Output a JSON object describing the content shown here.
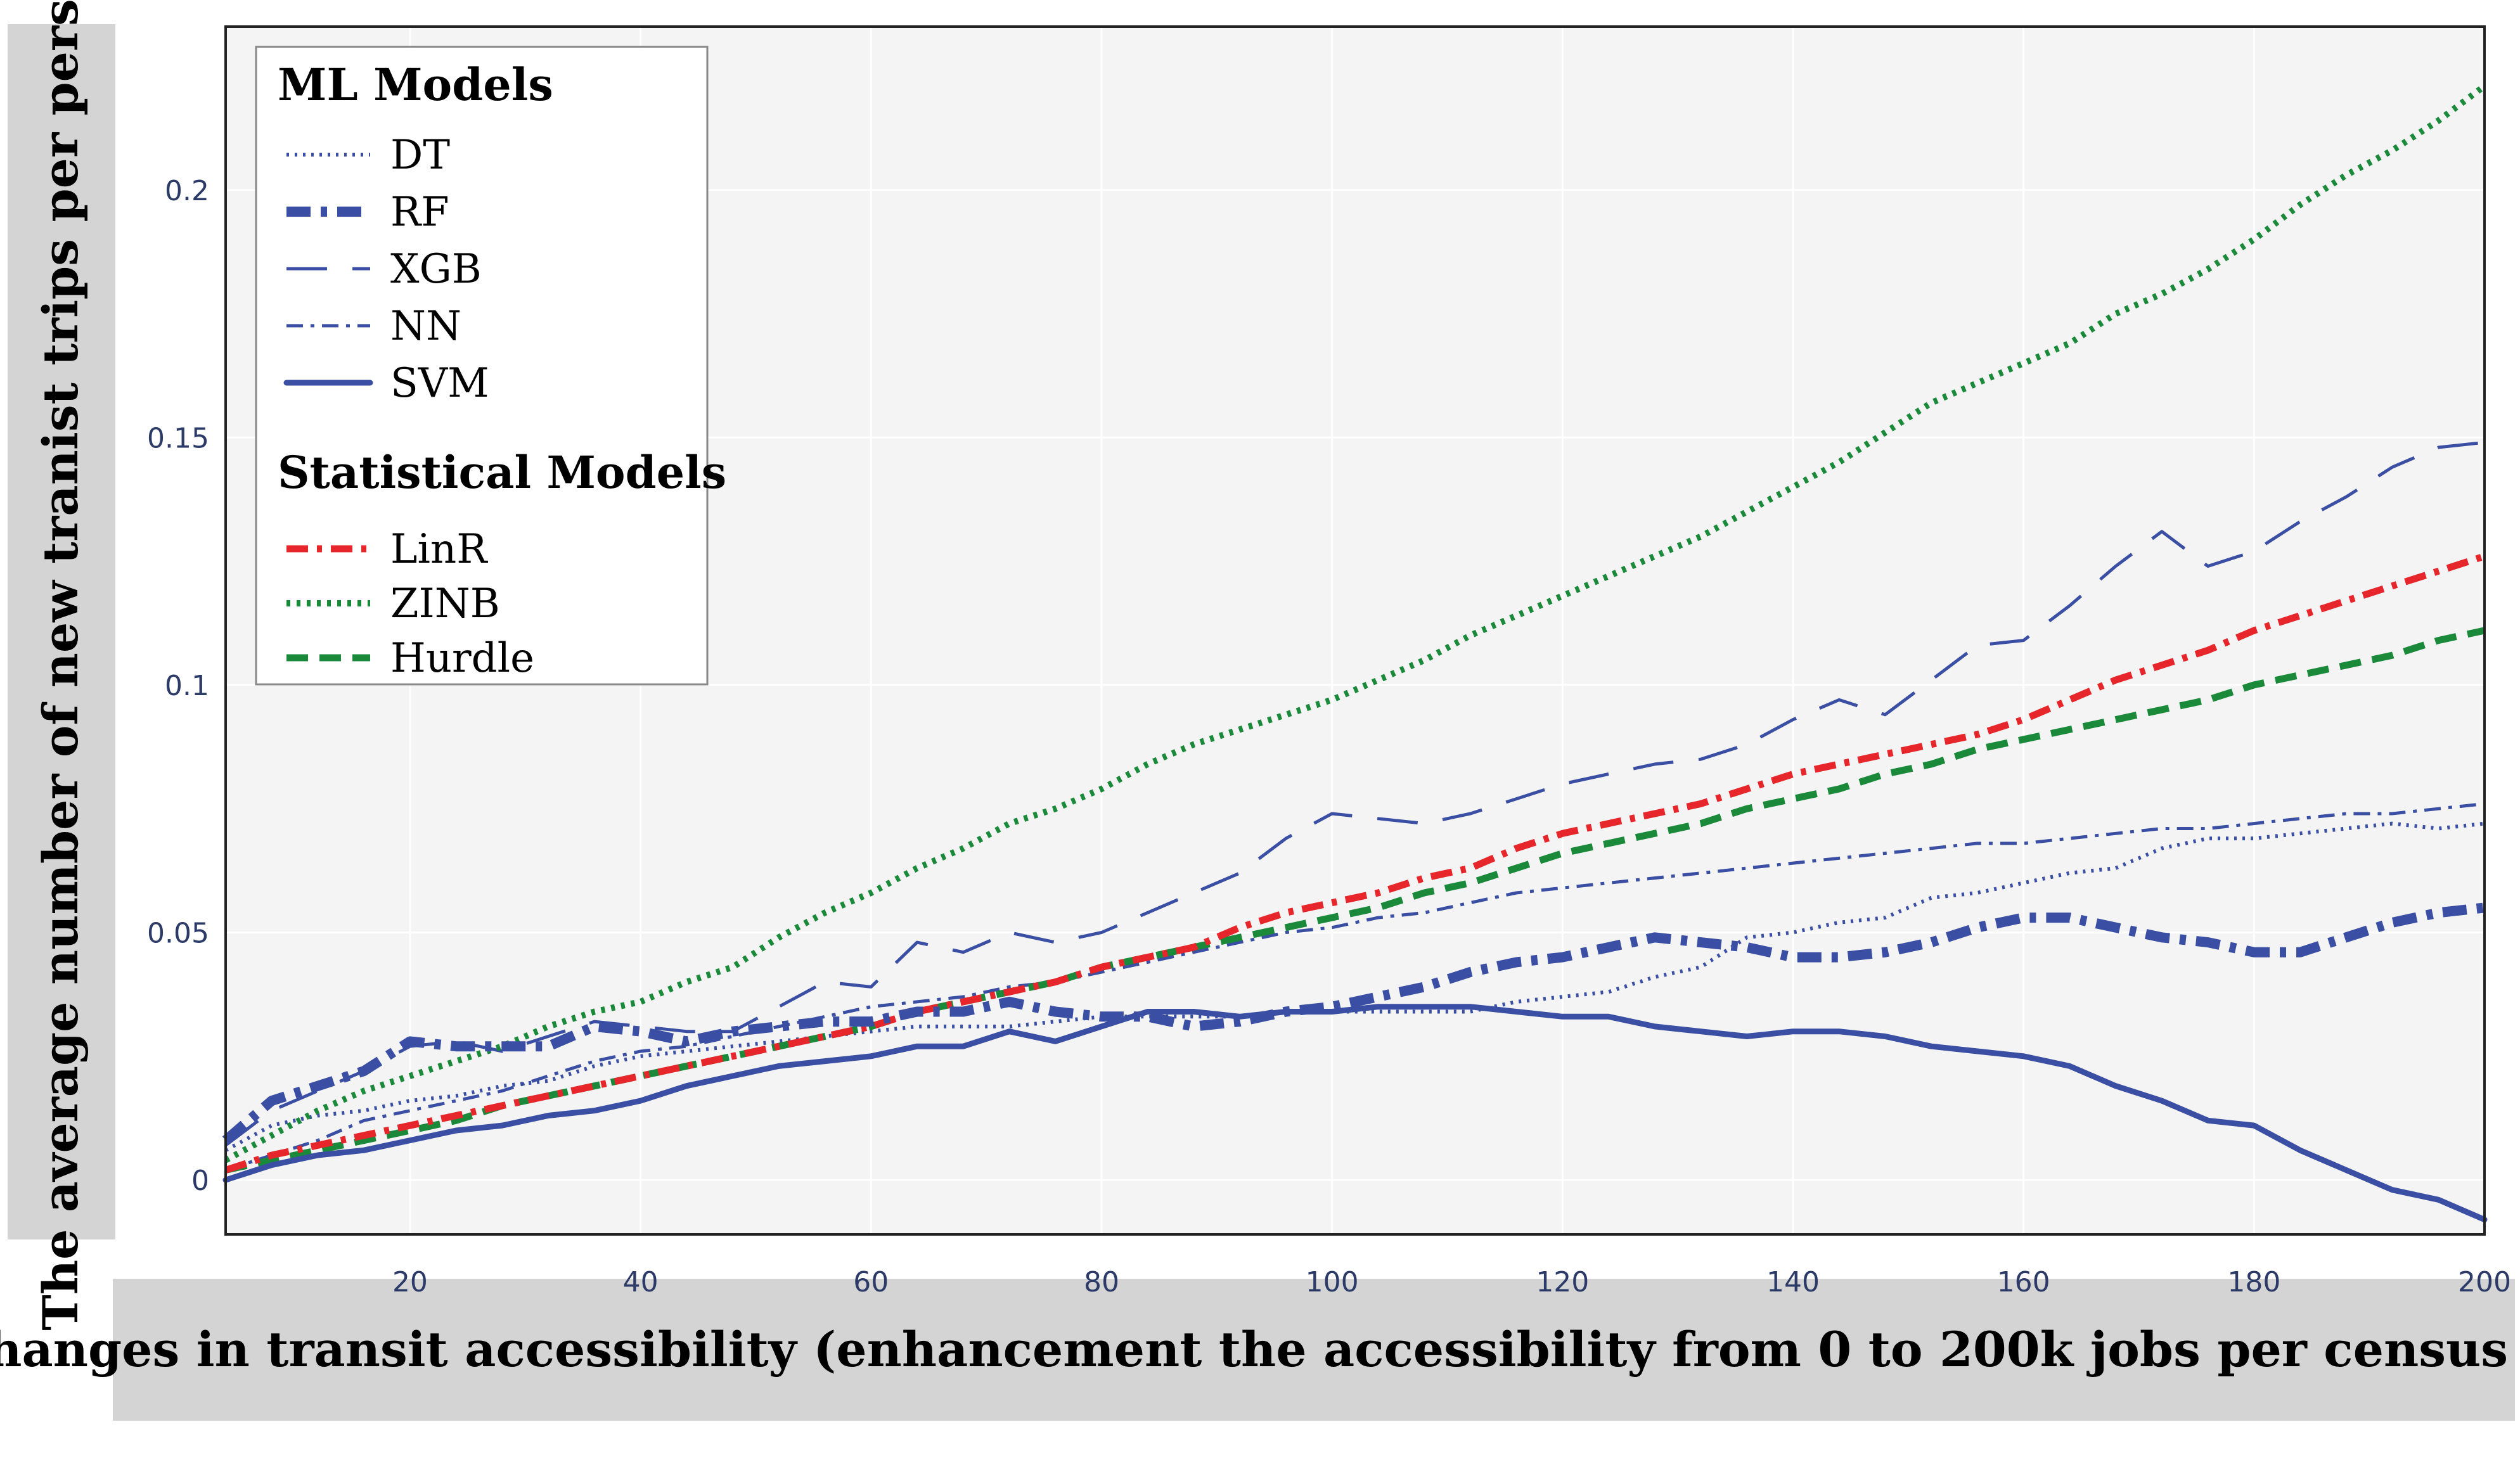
{
  "chart_data": {
    "type": "line",
    "title": "",
    "xlabel": "Changes in transit accessibility (enhancement the accessibility from 0 to 200k jobs per census tract)",
    "ylabel": "The average number of new tranist trips per person",
    "xlim": [
      4,
      200
    ],
    "ylim": [
      -0.011,
      0.233
    ],
    "xticks": [
      20,
      40,
      60,
      80,
      100,
      120,
      140,
      160,
      180,
      200
    ],
    "xtick_labels": [
      "20",
      "40",
      "60",
      "80",
      "100",
      "120",
      "140",
      "160",
      "180",
      "200"
    ],
    "yticks": [
      0,
      0.05,
      0.1,
      0.15,
      0.2
    ],
    "ytick_labels": [
      "0",
      "0.05",
      "0.1",
      "0.15",
      "0.2"
    ],
    "grid": true,
    "legend": {
      "position": "top-left",
      "groups": [
        {
          "title": "ML Models",
          "items": [
            "DT",
            "RF",
            "XGB",
            "NN",
            "SVM"
          ]
        },
        {
          "title": "Statistical Models",
          "items": [
            "LinR",
            "ZINB",
            "Hurdle"
          ]
        }
      ]
    },
    "series": [
      {
        "name": "DT",
        "group": "ML Models",
        "color": "#3a4fa3",
        "style": "dotted",
        "x": [
          4,
          8,
          12,
          16,
          20,
          24,
          28,
          32,
          36,
          40,
          44,
          48,
          52,
          56,
          60,
          64,
          68,
          72,
          76,
          80,
          84,
          88,
          92,
          96,
          100,
          104,
          108,
          112,
          116,
          120,
          124,
          128,
          132,
          136,
          140,
          144,
          148,
          152,
          156,
          160,
          164,
          168,
          172,
          176,
          180,
          184,
          188,
          192,
          196,
          200
        ],
        "y": [
          0.006,
          0.011,
          0.013,
          0.014,
          0.016,
          0.017,
          0.019,
          0.02,
          0.023,
          0.025,
          0.026,
          0.027,
          0.028,
          0.029,
          0.03,
          0.031,
          0.031,
          0.031,
          0.032,
          0.033,
          0.033,
          0.033,
          0.033,
          0.034,
          0.034,
          0.034,
          0.034,
          0.034,
          0.036,
          0.037,
          0.038,
          0.041,
          0.043,
          0.049,
          0.05,
          0.052,
          0.053,
          0.057,
          0.058,
          0.06,
          0.062,
          0.063,
          0.067,
          0.069,
          0.069,
          0.07,
          0.071,
          0.072,
          0.071,
          0.072
        ]
      },
      {
        "name": "RF",
        "group": "ML Models",
        "color": "#3a4fa3",
        "style": "thick-dashdot",
        "x": [
          4,
          8,
          12,
          16,
          20,
          24,
          28,
          32,
          36,
          40,
          44,
          48,
          52,
          56,
          60,
          64,
          68,
          72,
          76,
          80,
          84,
          88,
          92,
          96,
          100,
          104,
          108,
          112,
          116,
          120,
          124,
          128,
          132,
          136,
          140,
          144,
          148,
          152,
          156,
          160,
          164,
          168,
          172,
          176,
          180,
          184,
          188,
          192,
          196,
          200
        ],
        "y": [
          0.008,
          0.016,
          0.019,
          0.022,
          0.028,
          0.027,
          0.027,
          0.027,
          0.031,
          0.03,
          0.028,
          0.03,
          0.031,
          0.032,
          0.032,
          0.034,
          0.034,
          0.036,
          0.034,
          0.033,
          0.033,
          0.031,
          0.032,
          0.034,
          0.035,
          0.037,
          0.039,
          0.042,
          0.044,
          0.045,
          0.047,
          0.049,
          0.048,
          0.047,
          0.045,
          0.045,
          0.046,
          0.048,
          0.051,
          0.053,
          0.053,
          0.051,
          0.049,
          0.048,
          0.046,
          0.046,
          0.049,
          0.052,
          0.054,
          0.055
        ]
      },
      {
        "name": "XGB",
        "group": "ML Models",
        "color": "#3a4fa3",
        "style": "long-dash",
        "x": [
          4,
          8,
          12,
          16,
          20,
          24,
          28,
          32,
          36,
          40,
          44,
          48,
          52,
          56,
          60,
          64,
          68,
          72,
          76,
          80,
          84,
          88,
          92,
          96,
          100,
          104,
          108,
          112,
          116,
          120,
          124,
          128,
          132,
          136,
          140,
          144,
          148,
          152,
          156,
          160,
          164,
          168,
          172,
          176,
          180,
          184,
          188,
          192,
          196,
          200
        ],
        "y": [
          0.007,
          0.014,
          0.018,
          0.022,
          0.027,
          0.028,
          0.026,
          0.029,
          0.032,
          0.031,
          0.03,
          0.03,
          0.035,
          0.04,
          0.039,
          0.048,
          0.046,
          0.05,
          0.048,
          0.05,
          0.054,
          0.058,
          0.062,
          0.069,
          0.074,
          0.073,
          0.072,
          0.074,
          0.077,
          0.08,
          0.082,
          0.084,
          0.085,
          0.088,
          0.093,
          0.097,
          0.094,
          0.101,
          0.108,
          0.109,
          0.116,
          0.124,
          0.131,
          0.124,
          0.127,
          0.133,
          0.138,
          0.144,
          0.148,
          0.149
        ]
      },
      {
        "name": "NN",
        "group": "ML Models",
        "color": "#3a4fa3",
        "style": "dashdot",
        "x": [
          4,
          8,
          12,
          16,
          20,
          24,
          28,
          32,
          36,
          40,
          44,
          48,
          52,
          56,
          60,
          64,
          68,
          72,
          76,
          80,
          84,
          88,
          92,
          96,
          100,
          104,
          108,
          112,
          116,
          120,
          124,
          128,
          132,
          136,
          140,
          144,
          148,
          152,
          156,
          160,
          164,
          168,
          172,
          176,
          180,
          184,
          188,
          192,
          196,
          200
        ],
        "y": [
          0.002,
          0.005,
          0.008,
          0.012,
          0.014,
          0.016,
          0.018,
          0.021,
          0.024,
          0.026,
          0.027,
          0.029,
          0.031,
          0.033,
          0.035,
          0.036,
          0.037,
          0.039,
          0.04,
          0.042,
          0.044,
          0.046,
          0.048,
          0.05,
          0.051,
          0.053,
          0.054,
          0.056,
          0.058,
          0.059,
          0.06,
          0.061,
          0.062,
          0.063,
          0.064,
          0.065,
          0.066,
          0.067,
          0.068,
          0.068,
          0.069,
          0.07,
          0.071,
          0.071,
          0.072,
          0.073,
          0.074,
          0.074,
          0.075,
          0.076
        ]
      },
      {
        "name": "SVM",
        "group": "ML Models",
        "color": "#3a4fa3",
        "style": "solid",
        "x": [
          4,
          8,
          12,
          16,
          20,
          24,
          28,
          32,
          36,
          40,
          44,
          48,
          52,
          56,
          60,
          64,
          68,
          72,
          76,
          80,
          84,
          88,
          92,
          96,
          100,
          104,
          108,
          112,
          116,
          120,
          124,
          128,
          132,
          136,
          140,
          144,
          148,
          152,
          156,
          160,
          164,
          168,
          172,
          176,
          180,
          184,
          188,
          192,
          196,
          200
        ],
        "y": [
          0.0,
          0.003,
          0.005,
          0.006,
          0.008,
          0.01,
          0.011,
          0.013,
          0.014,
          0.016,
          0.019,
          0.021,
          0.023,
          0.024,
          0.025,
          0.027,
          0.027,
          0.03,
          0.028,
          0.031,
          0.034,
          0.034,
          0.033,
          0.034,
          0.034,
          0.035,
          0.035,
          0.035,
          0.034,
          0.033,
          0.033,
          0.031,
          0.03,
          0.029,
          0.03,
          0.03,
          0.029,
          0.027,
          0.026,
          0.025,
          0.023,
          0.019,
          0.016,
          0.012,
          0.011,
          0.006,
          0.002,
          -0.002,
          -0.004,
          -0.008
        ]
      },
      {
        "name": "LinR",
        "group": "Statistical Models",
        "color": "#e6262a",
        "style": "dashdot",
        "x": [
          4,
          8,
          12,
          16,
          20,
          24,
          28,
          32,
          36,
          40,
          44,
          48,
          52,
          56,
          60,
          64,
          68,
          72,
          76,
          80,
          84,
          88,
          92,
          96,
          100,
          104,
          108,
          112,
          116,
          120,
          124,
          128,
          132,
          136,
          140,
          144,
          148,
          152,
          156,
          160,
          164,
          168,
          172,
          176,
          180,
          184,
          188,
          192,
          196,
          200
        ],
        "y": [
          0.002,
          0.005,
          0.007,
          0.009,
          0.011,
          0.013,
          0.015,
          0.017,
          0.019,
          0.021,
          0.023,
          0.025,
          0.027,
          0.029,
          0.031,
          0.034,
          0.036,
          0.038,
          0.04,
          0.043,
          0.045,
          0.047,
          0.051,
          0.054,
          0.056,
          0.058,
          0.061,
          0.063,
          0.067,
          0.07,
          0.072,
          0.074,
          0.076,
          0.079,
          0.082,
          0.084,
          0.086,
          0.088,
          0.09,
          0.093,
          0.097,
          0.101,
          0.104,
          0.107,
          0.111,
          0.114,
          0.117,
          0.12,
          0.123,
          0.126
        ]
      },
      {
        "name": "ZINB",
        "group": "Statistical Models",
        "color": "#1a8a3a",
        "style": "thick-dotted",
        "x": [
          4,
          8,
          12,
          16,
          20,
          24,
          28,
          32,
          36,
          40,
          44,
          48,
          52,
          56,
          60,
          64,
          68,
          72,
          76,
          80,
          84,
          88,
          92,
          96,
          100,
          104,
          108,
          112,
          116,
          120,
          124,
          128,
          132,
          136,
          140,
          144,
          148,
          152,
          156,
          160,
          164,
          168,
          172,
          176,
          180,
          184,
          188,
          192,
          196,
          200
        ],
        "y": [
          0.004,
          0.009,
          0.014,
          0.018,
          0.021,
          0.024,
          0.027,
          0.031,
          0.034,
          0.036,
          0.04,
          0.043,
          0.049,
          0.054,
          0.058,
          0.063,
          0.067,
          0.072,
          0.075,
          0.079,
          0.084,
          0.088,
          0.091,
          0.094,
          0.097,
          0.101,
          0.105,
          0.11,
          0.114,
          0.118,
          0.122,
          0.126,
          0.13,
          0.135,
          0.14,
          0.145,
          0.151,
          0.157,
          0.161,
          0.165,
          0.169,
          0.175,
          0.179,
          0.184,
          0.19,
          0.197,
          0.203,
          0.208,
          0.214,
          0.221
        ]
      },
      {
        "name": "Hurdle",
        "group": "Statistical Models",
        "color": "#1a8a3a",
        "style": "thick-dashed",
        "x": [
          4,
          8,
          12,
          16,
          20,
          24,
          28,
          32,
          36,
          40,
          44,
          48,
          52,
          56,
          60,
          64,
          68,
          72,
          76,
          80,
          84,
          88,
          92,
          96,
          100,
          104,
          108,
          112,
          116,
          120,
          124,
          128,
          132,
          136,
          140,
          144,
          148,
          152,
          156,
          160,
          164,
          168,
          172,
          176,
          180,
          184,
          188,
          192,
          196,
          200
        ],
        "y": [
          0.002,
          0.004,
          0.006,
          0.008,
          0.01,
          0.012,
          0.015,
          0.017,
          0.019,
          0.021,
          0.023,
          0.025,
          0.027,
          0.029,
          0.031,
          0.034,
          0.036,
          0.038,
          0.04,
          0.043,
          0.045,
          0.047,
          0.049,
          0.051,
          0.053,
          0.055,
          0.058,
          0.06,
          0.063,
          0.066,
          0.068,
          0.07,
          0.072,
          0.075,
          0.077,
          0.079,
          0.082,
          0.084,
          0.087,
          0.089,
          0.091,
          0.093,
          0.095,
          0.097,
          0.1,
          0.102,
          0.104,
          0.106,
          0.109,
          0.111
        ]
      }
    ]
  }
}
